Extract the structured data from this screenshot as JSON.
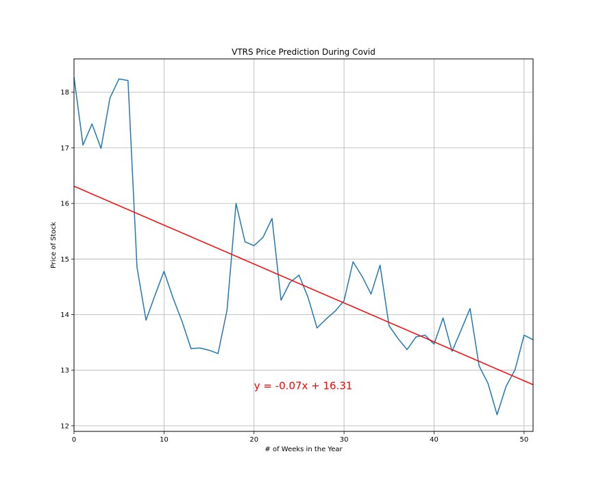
{
  "chart_data": {
    "type": "line",
    "title": "VTRS Price Prediction During Covid",
    "xlabel": "# of Weeks in the Year",
    "ylabel": "Price of Stock",
    "xlim": [
      0,
      51
    ],
    "ylim": [
      11.9,
      18.6
    ],
    "grid": true,
    "x_ticks": [
      0,
      10,
      20,
      30,
      40,
      50
    ],
    "y_ticks": [
      12,
      13,
      14,
      15,
      16,
      17,
      18
    ],
    "series": [
      {
        "color": "#1f77b4",
        "x": [
          0,
          1,
          2,
          3,
          4,
          5,
          6,
          7,
          8,
          9,
          10,
          11,
          12,
          13,
          14,
          15,
          16,
          17,
          18,
          19,
          20,
          21,
          22,
          23,
          24,
          25,
          26,
          27,
          28,
          29,
          30,
          31,
          32,
          33,
          34,
          35,
          36,
          37,
          38,
          39,
          40,
          41,
          42,
          43,
          44,
          45,
          46,
          47,
          48,
          49,
          50,
          51
        ],
        "values": [
          18.27,
          17.05,
          17.43,
          16.99,
          17.9,
          18.24,
          18.21,
          14.85,
          13.9,
          14.35,
          14.78,
          14.3,
          13.88,
          13.39,
          13.4,
          13.36,
          13.3,
          14.08,
          16.0,
          15.31,
          15.24,
          15.39,
          15.73,
          14.26,
          14.58,
          14.71,
          14.31,
          13.76,
          13.92,
          14.06,
          14.25,
          14.95,
          14.69,
          14.37,
          14.89,
          13.8,
          13.57,
          13.37,
          13.6,
          13.63,
          13.47,
          13.94,
          13.34,
          13.72,
          14.11,
          13.08,
          12.76,
          12.2,
          12.71,
          13.01,
          13.63,
          13.55
        ]
      },
      {
        "color": "#ff0000",
        "x": [
          0,
          51
        ],
        "values": [
          16.31,
          12.74
        ]
      }
    ],
    "annotation": {
      "text": "y = -0.07x + 16.31",
      "x": 20,
      "y": 12.72,
      "color": "#ff0000"
    }
  }
}
